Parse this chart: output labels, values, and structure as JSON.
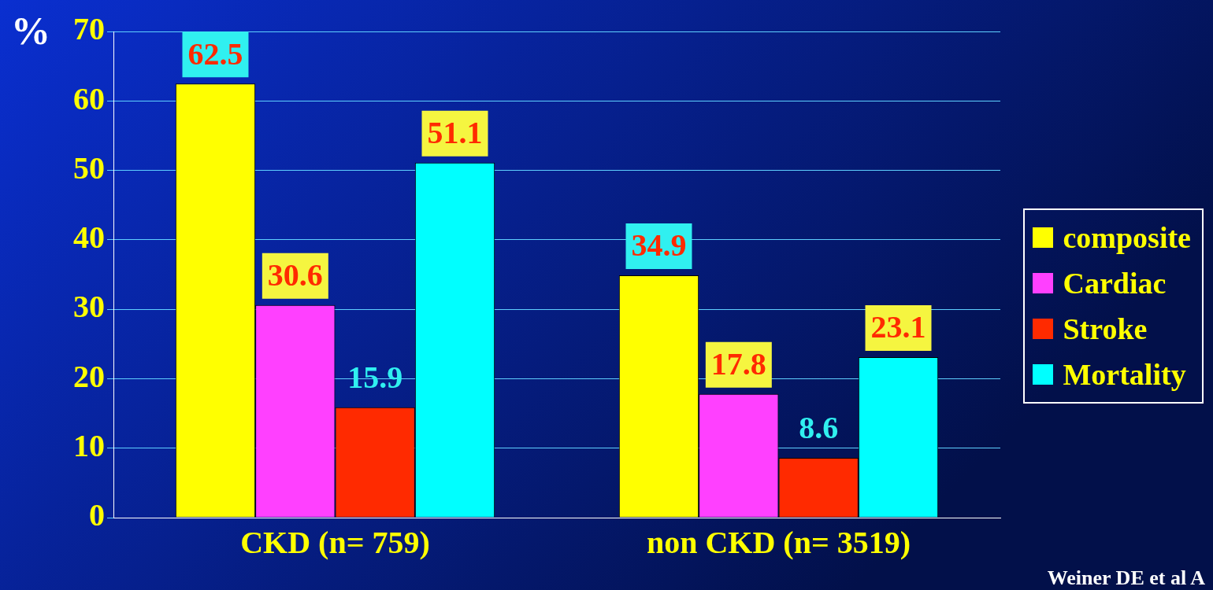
{
  "chart_data": {
    "type": "bar",
    "ylabel": "%",
    "categories": [
      "CKD (n= 759)",
      "non CKD (n= 3519)"
    ],
    "series": [
      {
        "name": "composite",
        "color": "#ffff00",
        "values": [
          62.5,
          34.9
        ]
      },
      {
        "name": "Cardiac",
        "color": "#ff40ff",
        "values": [
          30.6,
          17.8
        ]
      },
      {
        "name": "Stroke",
        "color": "#ff2a00",
        "values": [
          15.9,
          8.6
        ]
      },
      {
        "name": "Mortality",
        "color": "#00ffff",
        "values": [
          51.1,
          23.1
        ]
      }
    ],
    "ylim": [
      0,
      70
    ],
    "yticks": [
      0,
      10,
      20,
      30,
      40,
      50,
      60,
      70
    ],
    "grid": "y",
    "legend": "right",
    "data_labels": true,
    "annotations": [
      "Weiner DE et al A"
    ]
  }
}
